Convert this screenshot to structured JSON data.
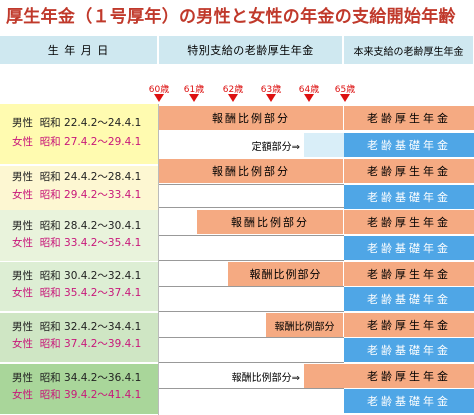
{
  "title": "厚生年金（１号厚年）の男性と女性の年金の支給開始年齢",
  "headers": {
    "col1": "生 年 月 日",
    "col2": "特別支給の老齢厚生年金",
    "col3": "本来支給の老齢厚生年金"
  },
  "ages": [
    "60歳",
    "61歳",
    "62歳",
    "63歳",
    "64歳",
    "65歳"
  ],
  "rows": [
    {
      "male_label": "男性",
      "male_era": "昭和",
      "male_range": "22.4.2～24.4.1",
      "female_label": "女性",
      "female_era": "昭和",
      "female_range": "27.4.2～29.4.1",
      "bar": "報酬比例部分",
      "sub": "定額部分⇒",
      "bg": "#fffbb0"
    },
    {
      "male_label": "男性",
      "male_era": "昭和",
      "male_range": "24.4.2～28.4.1",
      "female_label": "女性",
      "female_era": "昭和",
      "female_range": "29.4.2～33.4.1",
      "bar": "報酬比例部分",
      "bg": "#fdf7d2"
    },
    {
      "male_label": "男性",
      "male_era": "昭和",
      "male_range": "28.4.2～30.4.1",
      "female_label": "女性",
      "female_era": "昭和",
      "female_range": "33.4.2～35.4.1",
      "bar": "報酬比例部分",
      "bg": "#e9f3dc"
    },
    {
      "male_label": "男性",
      "male_era": "昭和",
      "male_range": "30.4.2～32.4.1",
      "female_label": "女性",
      "female_era": "昭和",
      "female_range": "35.4.2～37.4.1",
      "bar": "報酬比例部分",
      "bg": "#ddeed4"
    },
    {
      "male_label": "男性",
      "male_era": "昭和",
      "male_range": "32.4.2～34.4.1",
      "female_label": "女性",
      "female_era": "昭和",
      "female_range": "37.4.2～39.4.1",
      "bar": "報酬比例部分",
      "bg": "#cfe6c4"
    },
    {
      "male_label": "男性",
      "male_era": "昭和",
      "male_range": "34.4.2～36.4.1",
      "female_label": "女性",
      "female_era": "昭和",
      "female_range": "39.4.2～41.4.1",
      "bar": "報酬比例部分⇒",
      "bg": "#a9d69a"
    }
  ],
  "old_age_pension": "老齢厚生年金",
  "basic_pension": "老齢基礎年金",
  "colors": {
    "title": "#c0392b",
    "header": "#cfe8f0",
    "orange": "#f5aa82",
    "blue": "#4fa6e6",
    "arrow": "#dd1111"
  }
}
